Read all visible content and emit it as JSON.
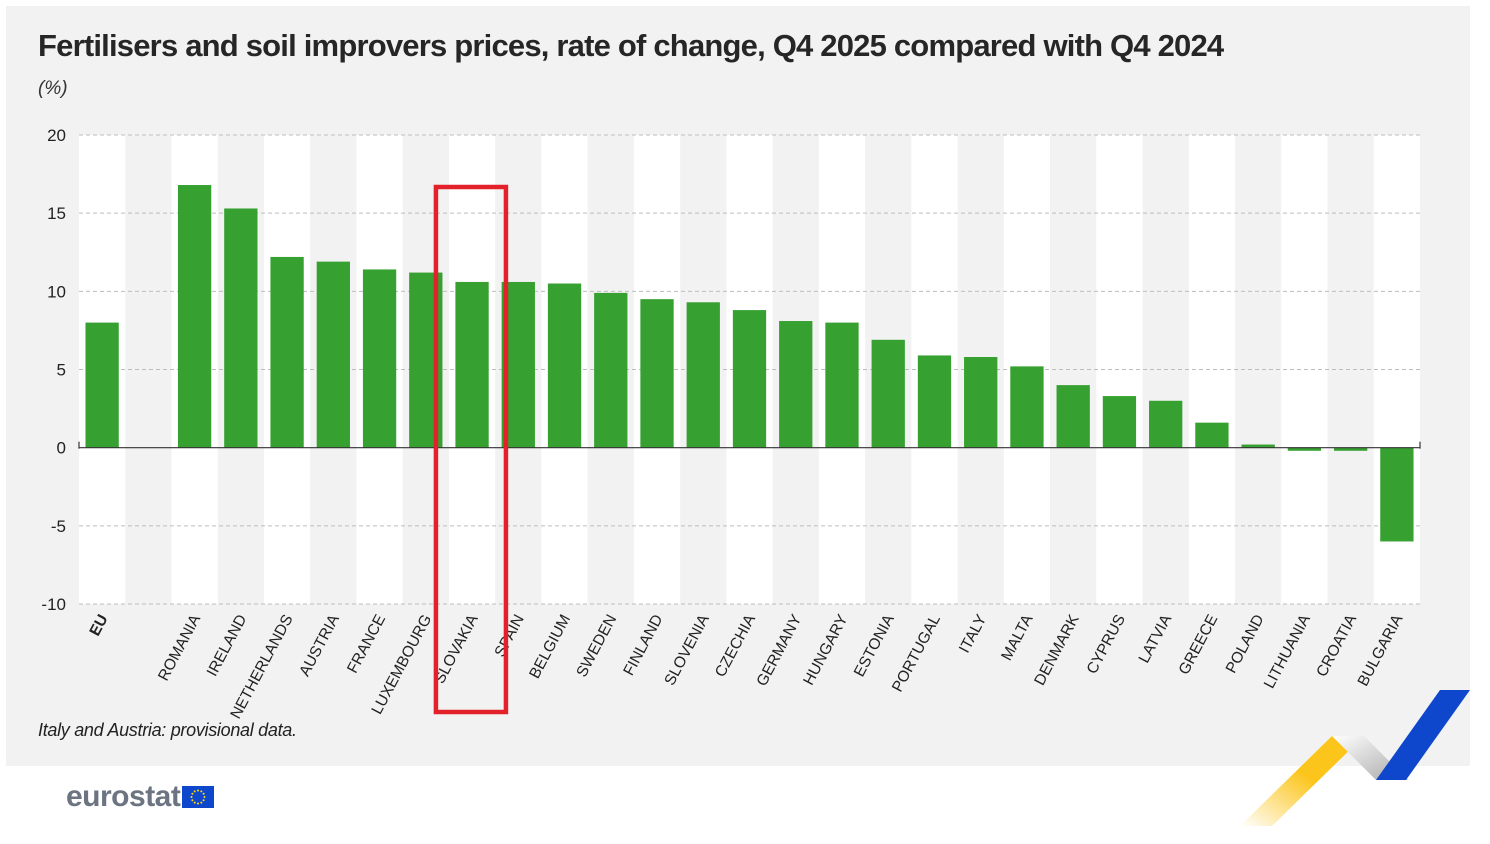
{
  "title": "Fertilisers and soil improvers prices, rate of change, Q4 2025 compared with Q4 2024",
  "unit": "(%)",
  "note": "Italy and Austria: provisional data.",
  "logo_text": "eurostat",
  "colors": {
    "bar": "#36a031",
    "highlight_box": "#e3212b",
    "panel_bg": "#f2f2f2",
    "band": "#ffffff",
    "logo_text": "#6b7480",
    "flag": "#0e47cb",
    "stripe_yellow": "#fcc51c",
    "stripe_blue": "#0e47cb",
    "stripe_grey": "#b0b0b0"
  },
  "highlighted_category": "SLOVAKIA",
  "chart_data": {
    "type": "bar",
    "title": "Fertilisers and soil improvers prices, rate of change, Q4 2025 compared with Q4 2024",
    "ylabel": "(%)",
    "xlabel": "",
    "ylim": [
      -10,
      20
    ],
    "yticks": [
      20,
      15,
      10,
      5,
      0,
      -5,
      -10
    ],
    "grid": true,
    "legend": "none",
    "categories": [
      "EU",
      "",
      "ROMANIA",
      "IRELAND",
      "NETHERLANDS",
      "AUSTRIA",
      "FRANCE",
      "LUXEMBOURG",
      "SLOVAKIA",
      "SPAIN",
      "BELGIUM",
      "SWEDEN",
      "FINLAND",
      "SLOVENIA",
      "CZECHIA",
      "GERMANY",
      "HUNGARY",
      "ESTONIA",
      "PORTUGAL",
      "ITALY",
      "MALTA",
      "DENMARK",
      "CYPRUS",
      "LATVIA",
      "GREECE",
      "POLAND",
      "LITHUANIA",
      "CROATIA",
      "BULGARIA"
    ],
    "values": [
      8.0,
      null,
      16.8,
      15.3,
      12.2,
      11.9,
      11.4,
      11.2,
      10.6,
      10.6,
      10.5,
      9.9,
      9.5,
      9.3,
      8.8,
      8.1,
      8.0,
      6.9,
      5.9,
      5.8,
      5.2,
      4.0,
      3.3,
      3.0,
      1.6,
      0.2,
      -0.2,
      -0.2,
      -6.0
    ]
  }
}
